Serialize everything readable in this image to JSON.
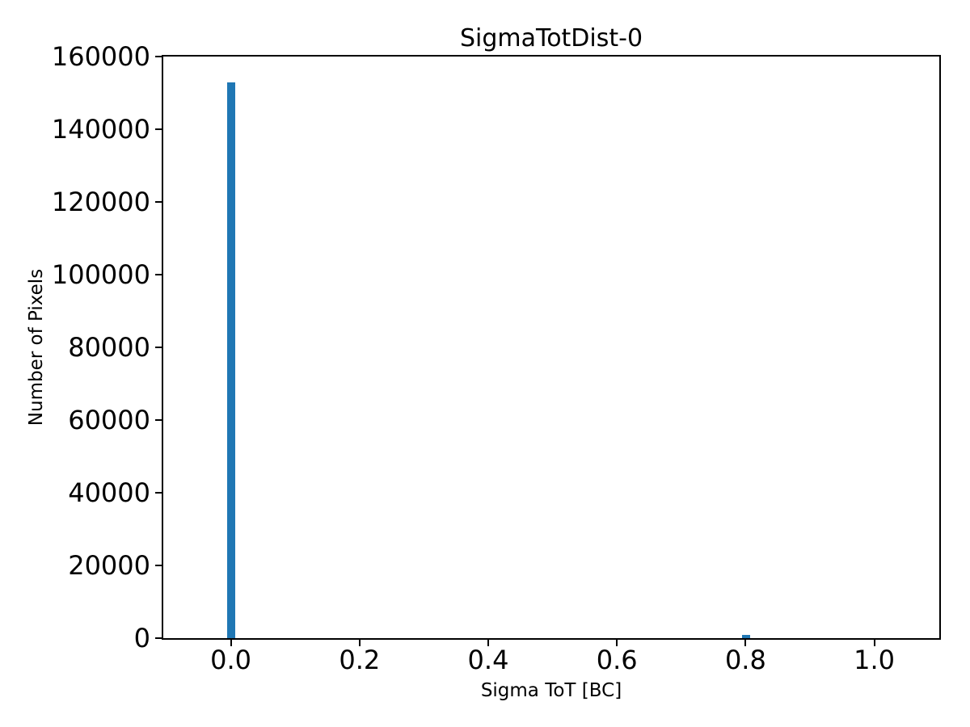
{
  "figure": {
    "background_color": "#ffffff",
    "text_color": "#000000"
  },
  "chart_data": {
    "type": "bar",
    "title": "SigmaTotDist-0",
    "xlabel": "Sigma ToT [BC]",
    "ylabel": "Number of Pixels",
    "bar_color": "#1f77b4",
    "bar_width": 0.0125,
    "bars": [
      {
        "x": 0.0,
        "count": 153000
      },
      {
        "x": 0.801,
        "count": 900
      }
    ],
    "xlim": [
      -0.105,
      1.101
    ],
    "ylim": [
      0,
      160000
    ],
    "x_ticks": [
      0.0,
      0.2,
      0.4,
      0.6,
      0.8,
      1.0
    ],
    "x_tick_labels": [
      "0.0",
      "0.2",
      "0.4",
      "0.6",
      "0.8",
      "1.0"
    ],
    "y_ticks": [
      0,
      20000,
      40000,
      60000,
      80000,
      100000,
      120000,
      140000,
      160000
    ],
    "y_tick_labels": [
      "0",
      "20000",
      "40000",
      "60000",
      "80000",
      "100000",
      "120000",
      "140000",
      "160000"
    ],
    "grid": false,
    "legend": null
  }
}
